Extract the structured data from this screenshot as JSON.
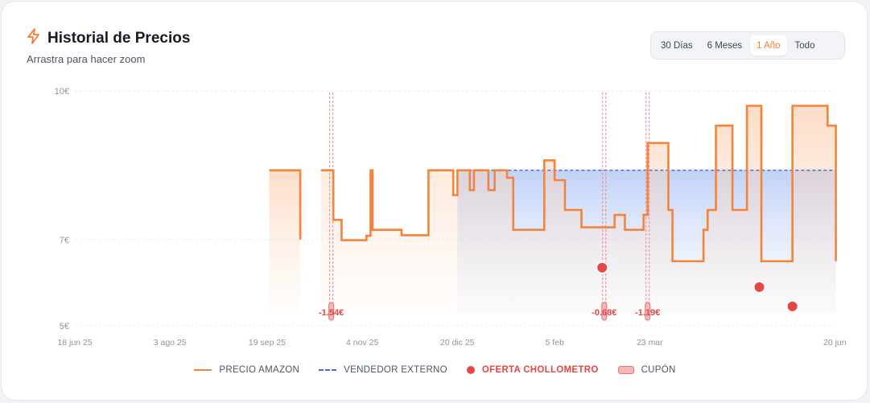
{
  "header": {
    "title": "Historial de Precios",
    "subtitle": "Arrastra para hacer zoom",
    "icon": "lightning-icon"
  },
  "range_selector": {
    "options": [
      "30 Días",
      "6 Meses",
      "1 Año",
      "Todo"
    ],
    "selected": "1 Año"
  },
  "legend": {
    "amazon": "PRECIO AMAZON",
    "external": "VENDEDOR EXTERNO",
    "offer": "OFERTA CHOLLOMETRO",
    "coupon": "CUPÓN"
  },
  "colors": {
    "amazon": "#f5843a",
    "external": "#3f6fd8",
    "offer": "#e84545",
    "coupon": "#f6b6b6"
  },
  "chart_data": {
    "type": "line",
    "x_tick_labels": [
      "18 jun 25",
      "3 ago 25",
      "19 sep 25",
      "4 nov 25",
      "20 dic 25",
      "5 feb",
      "23 mar",
      "20 jun"
    ],
    "x_ticks": [
      "2025-06-18",
      "2025-08-03",
      "2025-09-19",
      "2025-11-04",
      "2025-12-20",
      "2026-02-05",
      "2026-03-23",
      "2026-06-20"
    ],
    "y_tick_labels": [
      "10€",
      "7€",
      "5€"
    ],
    "y_ticks": [
      10,
      7,
      5
    ],
    "ylim": [
      5,
      10
    ],
    "xlim": [
      "2025-06-18",
      "2026-06-20"
    ],
    "series": [
      {
        "name": "PRECIO AMAZON",
        "style": "step",
        "segments": [
          [
            [
              "2025-09-20",
              8.4
            ],
            [
              "2025-10-05",
              7.0
            ]
          ],
          [
            [
              "2025-10-15",
              8.4
            ],
            [
              "2025-10-21",
              7.4
            ],
            [
              "2025-10-25",
              6.99
            ],
            [
              "2025-11-06",
              7.08
            ],
            [
              "2025-11-08",
              8.4
            ],
            [
              "2025-11-09",
              7.2
            ],
            [
              "2025-11-23",
              7.09
            ],
            [
              "2025-12-06",
              8.4
            ],
            [
              "2025-12-18",
              7.9
            ],
            [
              "2025-12-20",
              8.4
            ],
            [
              "2025-12-26",
              8.0
            ],
            [
              "2025-12-28",
              8.4
            ],
            [
              "2026-01-04",
              8.0
            ],
            [
              "2026-01-07",
              8.4
            ],
            [
              "2026-01-13",
              8.25
            ],
            [
              "2026-01-16",
              7.2
            ],
            [
              "2026-01-31",
              8.6
            ],
            [
              "2026-02-05",
              8.2
            ],
            [
              "2026-02-10",
              7.6
            ],
            [
              "2026-02-18",
              7.25
            ],
            [
              "2026-03-06",
              7.5
            ],
            [
              "2026-03-11",
              7.2
            ],
            [
              "2026-03-20",
              7.5
            ],
            [
              "2026-03-22",
              8.95
            ],
            [
              "2026-04-01",
              7.6
            ],
            [
              "2026-04-03",
              6.5
            ],
            [
              "2026-04-18",
              7.2
            ],
            [
              "2026-04-20",
              7.6
            ],
            [
              "2026-04-24",
              9.3
            ],
            [
              "2026-05-02",
              7.6
            ],
            [
              "2026-05-09",
              9.7
            ],
            [
              "2026-05-16",
              6.5
            ],
            [
              "2026-05-31",
              9.7
            ],
            [
              "2026-06-17",
              9.3
            ],
            [
              "2026-06-21",
              6.5
            ]
          ]
        ]
      },
      {
        "name": "VENDEDOR EXTERNO",
        "style": "step",
        "segments": [
          [
            [
              "2025-12-20",
              8.4
            ],
            [
              "2026-06-21",
              8.4
            ]
          ]
        ]
      }
    ],
    "offers": [
      {
        "x": "2026-02-28",
        "y": 6.35
      },
      {
        "x": "2026-05-15",
        "y": 5.9
      },
      {
        "x": "2026-05-31",
        "y": 5.45
      }
    ],
    "coupons": [
      {
        "x": "2025-10-20",
        "label": "-1.54€"
      },
      {
        "x": "2026-03-01",
        "label": "-0.68€"
      },
      {
        "x": "2026-03-22",
        "label": "-1.19€"
      }
    ],
    "legend_position": "bottom",
    "grid": true
  }
}
